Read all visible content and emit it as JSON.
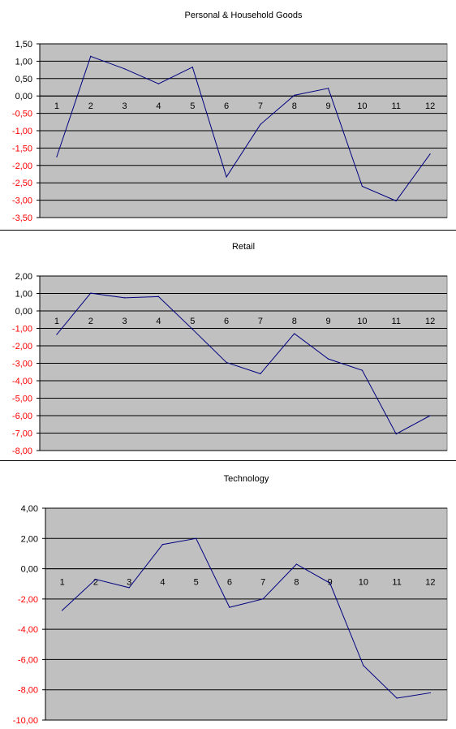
{
  "colors": {
    "plot_bg": "#c0c0c0",
    "line": "#000080",
    "grid": "#000000",
    "neg_tick": "#ff0000",
    "pos_tick": "#000000"
  },
  "chart_data": [
    {
      "type": "line",
      "title": "Personal & Household Goods",
      "xlabel": "",
      "ylabel": "",
      "categories": [
        "1",
        "2",
        "3",
        "4",
        "5",
        "6",
        "7",
        "8",
        "9",
        "10",
        "11",
        "12"
      ],
      "series": [
        {
          "values": [
            -1.75,
            1.14,
            0.78,
            0.35,
            0.83,
            -2.33,
            -0.82,
            0.02,
            0.22,
            -2.6,
            -3.02,
            -1.67
          ]
        }
      ],
      "ylim": [
        -3.5,
        1.5
      ],
      "yticks": [
        "1,50",
        "1,00",
        "0,50",
        "0,00",
        "-0,50",
        "-1,00",
        "-1,50",
        "-2,00",
        "-2,50",
        "-3,00",
        "-3,50"
      ],
      "grid": true,
      "legend": "none"
    },
    {
      "type": "line",
      "title": "Retail",
      "xlabel": "",
      "ylabel": "",
      "categories": [
        "1",
        "2",
        "3",
        "4",
        "5",
        "6",
        "7",
        "8",
        "9",
        "10",
        "11",
        "12"
      ],
      "series": [
        {
          "values": [
            -1.35,
            1.02,
            0.75,
            0.82,
            -1.05,
            -2.95,
            -3.6,
            -1.3,
            -2.75,
            -3.4,
            -7.05,
            -6.0
          ]
        }
      ],
      "ylim": [
        -8,
        2
      ],
      "yticks": [
        "2,00",
        "1,00",
        "0,00",
        "-1,00",
        "-2,00",
        "-3,00",
        "-4,00",
        "-5,00",
        "-6,00",
        "-7,00",
        "-8,00"
      ],
      "grid": true,
      "legend": "none"
    },
    {
      "type": "line",
      "title": "Technology",
      "xlabel": "",
      "ylabel": "",
      "categories": [
        "1",
        "2",
        "3",
        "4",
        "5",
        "6",
        "7",
        "8",
        "9",
        "10",
        "11",
        "12"
      ],
      "series": [
        {
          "values": [
            -2.75,
            -0.7,
            -1.25,
            1.6,
            2.0,
            -2.55,
            -2.0,
            0.3,
            -0.95,
            -6.4,
            -8.55,
            -8.2
          ]
        }
      ],
      "ylim": [
        -10,
        4
      ],
      "yticks": [
        "4,00",
        "2,00",
        "0,00",
        "-2,00",
        "-4,00",
        "-6,00",
        "-8,00",
        "-10,00"
      ],
      "grid": true,
      "legend": "none"
    }
  ]
}
